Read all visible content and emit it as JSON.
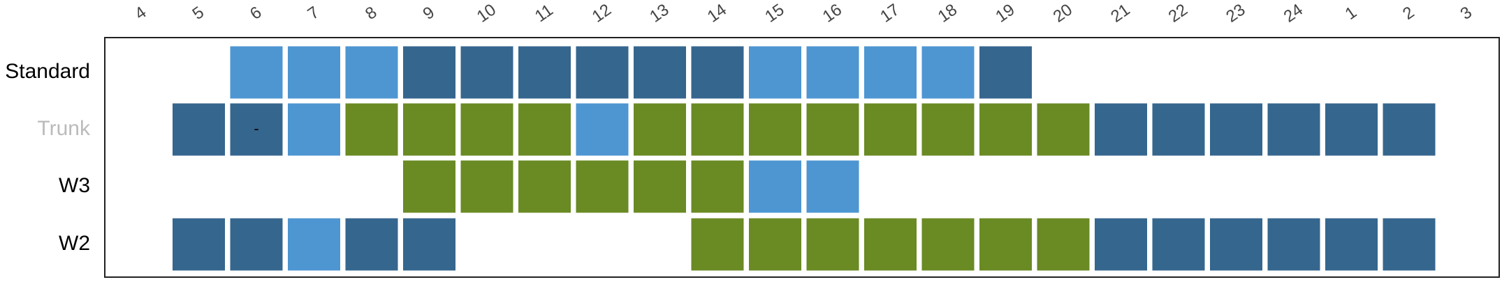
{
  "chart_data": {
    "type": "heatmap",
    "x_ticks": [
      "4",
      "5",
      "6",
      "7",
      "8",
      "9",
      "10",
      "11",
      "12",
      "13",
      "14",
      "15",
      "16",
      "17",
      "18",
      "19",
      "20",
      "21",
      "22",
      "23",
      "24",
      "1",
      "2",
      "3"
    ],
    "rows": [
      {
        "label": "Standard",
        "label_color": "#000000"
      },
      {
        "label": "Trunk",
        "label_color": "#BBBBBB"
      },
      {
        "label": "W3",
        "label_color": "#000000"
      },
      {
        "label": "W2",
        "label_color": "#000000"
      }
    ],
    "colors": {
      "D": "#35668E",
      "L": "#4E96D2",
      "G": "#6A8A24"
    },
    "cells": [
      [
        null,
        null,
        "L",
        "L",
        "L",
        "D",
        "D",
        "D",
        "D",
        "D",
        "D",
        "L",
        "L",
        "L",
        "L",
        "D",
        null,
        null,
        null,
        null,
        null,
        null,
        null,
        null
      ],
      [
        null,
        "D",
        "D",
        "L",
        "G",
        "G",
        "G",
        "G",
        "L",
        "G",
        "G",
        "G",
        "G",
        "G",
        "G",
        "G",
        "G",
        "D",
        "D",
        "D",
        "D",
        "D",
        "D",
        null
      ],
      [
        null,
        null,
        null,
        null,
        null,
        "G",
        "G",
        "G",
        "G",
        "G",
        "G",
        "L",
        "L",
        null,
        null,
        null,
        null,
        null,
        null,
        null,
        null,
        null,
        null,
        null
      ],
      [
        null,
        "D",
        "D",
        "L",
        "D",
        "D",
        null,
        null,
        null,
        null,
        "G",
        "G",
        "G",
        "G",
        "G",
        "G",
        "G",
        "D",
        "D",
        "D",
        "D",
        "D",
        "D",
        null
      ]
    ],
    "cell_labels": [
      {
        "row": 1,
        "col": 2,
        "text": "-"
      }
    ],
    "grid": false,
    "legend": "none"
  }
}
